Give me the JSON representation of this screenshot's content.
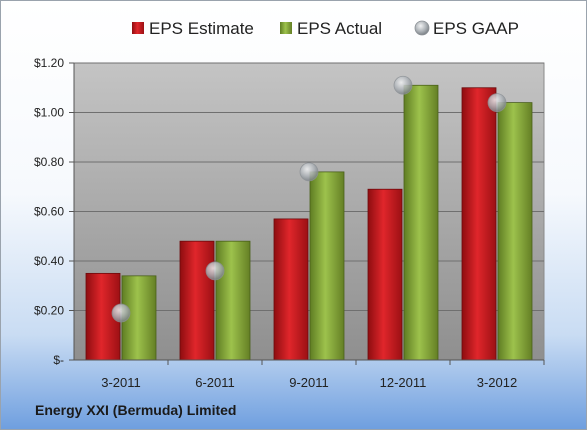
{
  "chart_data": {
    "type": "bar",
    "categories": [
      "3-2011",
      "6-2011",
      "9-2011",
      "12-2011",
      "3-2012"
    ],
    "series": [
      {
        "name": "EPS Estimate",
        "values": [
          0.35,
          0.48,
          0.57,
          0.69,
          1.1
        ],
        "color": "#c0151a"
      },
      {
        "name": "EPS Actual",
        "values": [
          0.34,
          0.48,
          0.76,
          1.11,
          1.04
        ],
        "color": "#86a83a"
      },
      {
        "name": "EPS GAAP",
        "values": [
          0.19,
          0.36,
          0.76,
          1.11,
          1.04
        ],
        "color": "#b8bcc0",
        "marker": "circle"
      }
    ],
    "y_ticks": [
      {
        "value": 0,
        "label": "$-"
      },
      {
        "value": 0.2,
        "label": "$0.20"
      },
      {
        "value": 0.4,
        "label": "$0.40"
      },
      {
        "value": 0.6,
        "label": "$0.60"
      },
      {
        "value": 0.8,
        "label": "$0.80"
      },
      {
        "value": 1.0,
        "label": "$1.00"
      },
      {
        "value": 1.2,
        "label": "$1.20"
      }
    ],
    "ylim": [
      0,
      1.2
    ],
    "grid": true,
    "legend_position": "top"
  },
  "company_name": "Energy XXI (Bermuda) Limited"
}
